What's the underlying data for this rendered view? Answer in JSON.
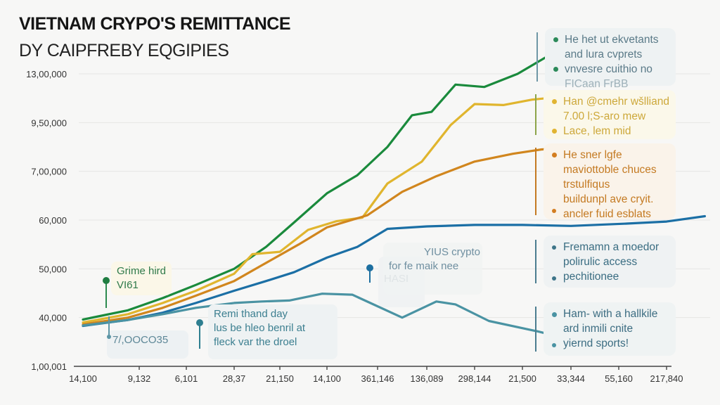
{
  "chart_data": {
    "type": "line",
    "title": "VIETNAM CRYPO'S REMITTANCE",
    "subtitle": "DY CAIPFREBY EQGIPIES",
    "xlabel": "",
    "ylabel": "",
    "y_scale": "ordinal tick index (0 = bottom tick, 6 = top tick); values estimated between ticks",
    "y_ticks": [
      "1,00,001",
      "40,000",
      "50,000",
      "60,000",
      "7,00,000",
      "9,50,000",
      "13,00,000"
    ],
    "x_ticks": [
      "14,100",
      "9,132",
      "6,101",
      "28,37",
      "21,150",
      "14,100",
      "361,146",
      "136,089",
      "298,144",
      "21,500",
      "33,344",
      "55,160",
      "217,840"
    ],
    "x_scale": "tick index (0..12)",
    "grid": true,
    "legend": "none",
    "series": [
      {
        "name": "green",
        "color": "#1a8a3c",
        "points": [
          [
            0,
            0.96
          ],
          [
            0.8,
            1.15
          ],
          [
            1.5,
            1.4
          ],
          [
            2.2,
            1.67
          ],
          [
            3.0,
            2.0
          ],
          [
            3.7,
            2.45
          ],
          [
            4.3,
            2.95
          ],
          [
            5.0,
            3.55
          ],
          [
            5.6,
            3.92
          ],
          [
            6.2,
            4.5
          ],
          [
            6.7,
            5.15
          ],
          [
            7.1,
            5.22
          ],
          [
            7.6,
            5.78
          ],
          [
            8.2,
            5.73
          ],
          [
            8.9,
            6.0
          ],
          [
            9.5,
            6.35
          ],
          [
            10.0,
            6.8
          ]
        ]
      },
      {
        "name": "yellow",
        "color": "#e0b52e",
        "points": [
          [
            0,
            0.9
          ],
          [
            0.8,
            1.07
          ],
          [
            1.5,
            1.3
          ],
          [
            2.2,
            1.55
          ],
          [
            3.0,
            1.9
          ],
          [
            3.4,
            2.3
          ],
          [
            4.0,
            2.35
          ],
          [
            4.6,
            2.8
          ],
          [
            5.2,
            2.98
          ],
          [
            5.7,
            3.05
          ],
          [
            6.2,
            3.75
          ],
          [
            6.9,
            4.2
          ],
          [
            7.5,
            4.95
          ],
          [
            8.0,
            5.38
          ],
          [
            8.6,
            5.36
          ],
          [
            9.2,
            5.47
          ],
          [
            10.0,
            5.55
          ]
        ]
      },
      {
        "name": "orange",
        "color": "#d1861e",
        "points": [
          [
            0,
            0.86
          ],
          [
            0.8,
            1.0
          ],
          [
            1.5,
            1.2
          ],
          [
            2.2,
            1.45
          ],
          [
            3.0,
            1.75
          ],
          [
            3.6,
            2.07
          ],
          [
            4.4,
            2.5
          ],
          [
            5.0,
            2.85
          ],
          [
            5.8,
            3.1
          ],
          [
            6.5,
            3.58
          ],
          [
            7.2,
            3.9
          ],
          [
            8.0,
            4.2
          ],
          [
            8.8,
            4.36
          ],
          [
            9.4,
            4.45
          ],
          [
            10.0,
            4.47
          ]
        ]
      },
      {
        "name": "blue",
        "color": "#1b6fa5",
        "points": [
          [
            0,
            0.83
          ],
          [
            0.8,
            0.95
          ],
          [
            1.5,
            1.1
          ],
          [
            2.2,
            1.3
          ],
          [
            3.0,
            1.55
          ],
          [
            3.7,
            1.75
          ],
          [
            4.3,
            1.93
          ],
          [
            5.0,
            2.23
          ],
          [
            5.6,
            2.45
          ],
          [
            6.2,
            2.82
          ],
          [
            7.0,
            2.87
          ],
          [
            8.0,
            2.9
          ],
          [
            9.0,
            2.9
          ],
          [
            10.0,
            2.88
          ],
          [
            11.2,
            2.93
          ],
          [
            12.0,
            2.97
          ],
          [
            12.8,
            3.08
          ]
        ]
      },
      {
        "name": "teal",
        "color": "#4a93a3",
        "points": [
          [
            0,
            0.84
          ],
          [
            0.8,
            0.95
          ],
          [
            1.5,
            1.07
          ],
          [
            2.2,
            1.2
          ],
          [
            3.0,
            1.3
          ],
          [
            3.6,
            1.33
          ],
          [
            4.2,
            1.35
          ],
          [
            4.9,
            1.49
          ],
          [
            5.5,
            1.47
          ],
          [
            6.5,
            1.0
          ],
          [
            7.2,
            1.33
          ],
          [
            7.6,
            1.27
          ],
          [
            8.3,
            0.93
          ],
          [
            9.3,
            0.72
          ],
          [
            10.0,
            0.55
          ]
        ]
      }
    ]
  },
  "annotations": [
    {
      "id": "ann-green",
      "lines": [
        "He het ut ekvetants",
        "and lura cvprets",
        "vnvesre cuithio no",
        "FICaan FrBB"
      ],
      "color": "#5a7a88",
      "bg": "#eef2f3",
      "bullet": "#2c8a5a",
      "bar": "#6f97a6"
    },
    {
      "id": "ann-yellow",
      "lines": [
        "Han @cmehr wšlliand",
        "7.00 l;S-aro mew",
        "Lace, lem mid"
      ],
      "color": "#cda83a",
      "bg": "#fbf8ea",
      "bullet": "#e1b431",
      "bar": "#8da54a"
    },
    {
      "id": "ann-orange",
      "lines": [
        "He sner lgfe",
        "maviottoble chuces",
        "trstulfiqus",
        "buildunpl ave cryit.",
        "ancler fuid esblats"
      ],
      "color": "#c47a22",
      "bg": "#faf3ea",
      "bullet": "#d37d20",
      "bar": "#c47a22"
    },
    {
      "id": "ann-blue",
      "lines": [
        "Fremamn a moedor",
        "polirulic access",
        "pechitionee"
      ],
      "color": "#3a6d82",
      "bg": "#eff2f3",
      "bullet": "#3d7488",
      "bar": "#4b7d90"
    },
    {
      "id": "ann-teal",
      "lines": [
        "Ham- with a hallkile",
        "ard inmili cnite",
        "yiernd sports!"
      ],
      "color": "#3c6d82",
      "bg": "#eff3f3",
      "bullet": "#4a93a3",
      "bar": "#4b7d90"
    }
  ],
  "small_annotations": [
    {
      "id": "grime",
      "lines": [
        "Grime hird",
        "VI61"
      ],
      "color": "#2f7a4a",
      "bg": "#fbf7e8"
    },
    {
      "id": "oocob",
      "lines": [
        "7/,OOCO35"
      ],
      "color": "#5d8797",
      "bg": "#eef2f3"
    },
    {
      "id": "remi",
      "lines": [
        "Remi thand day",
        "lus be hleo benril at",
        "fleck var the droel"
      ],
      "color": "#3c7f90",
      "bg": "#eff2f3"
    },
    {
      "id": "yius",
      "lines": [
        "YIUS crypto",
        "for fe maik nee"
      ],
      "color": "#6f8fa0",
      "bg": "#f0f2f3"
    },
    {
      "id": "hasl",
      "lines": [
        "HASI"
      ],
      "color": "#9aabb4",
      "bg": "#f0f2f3"
    }
  ]
}
